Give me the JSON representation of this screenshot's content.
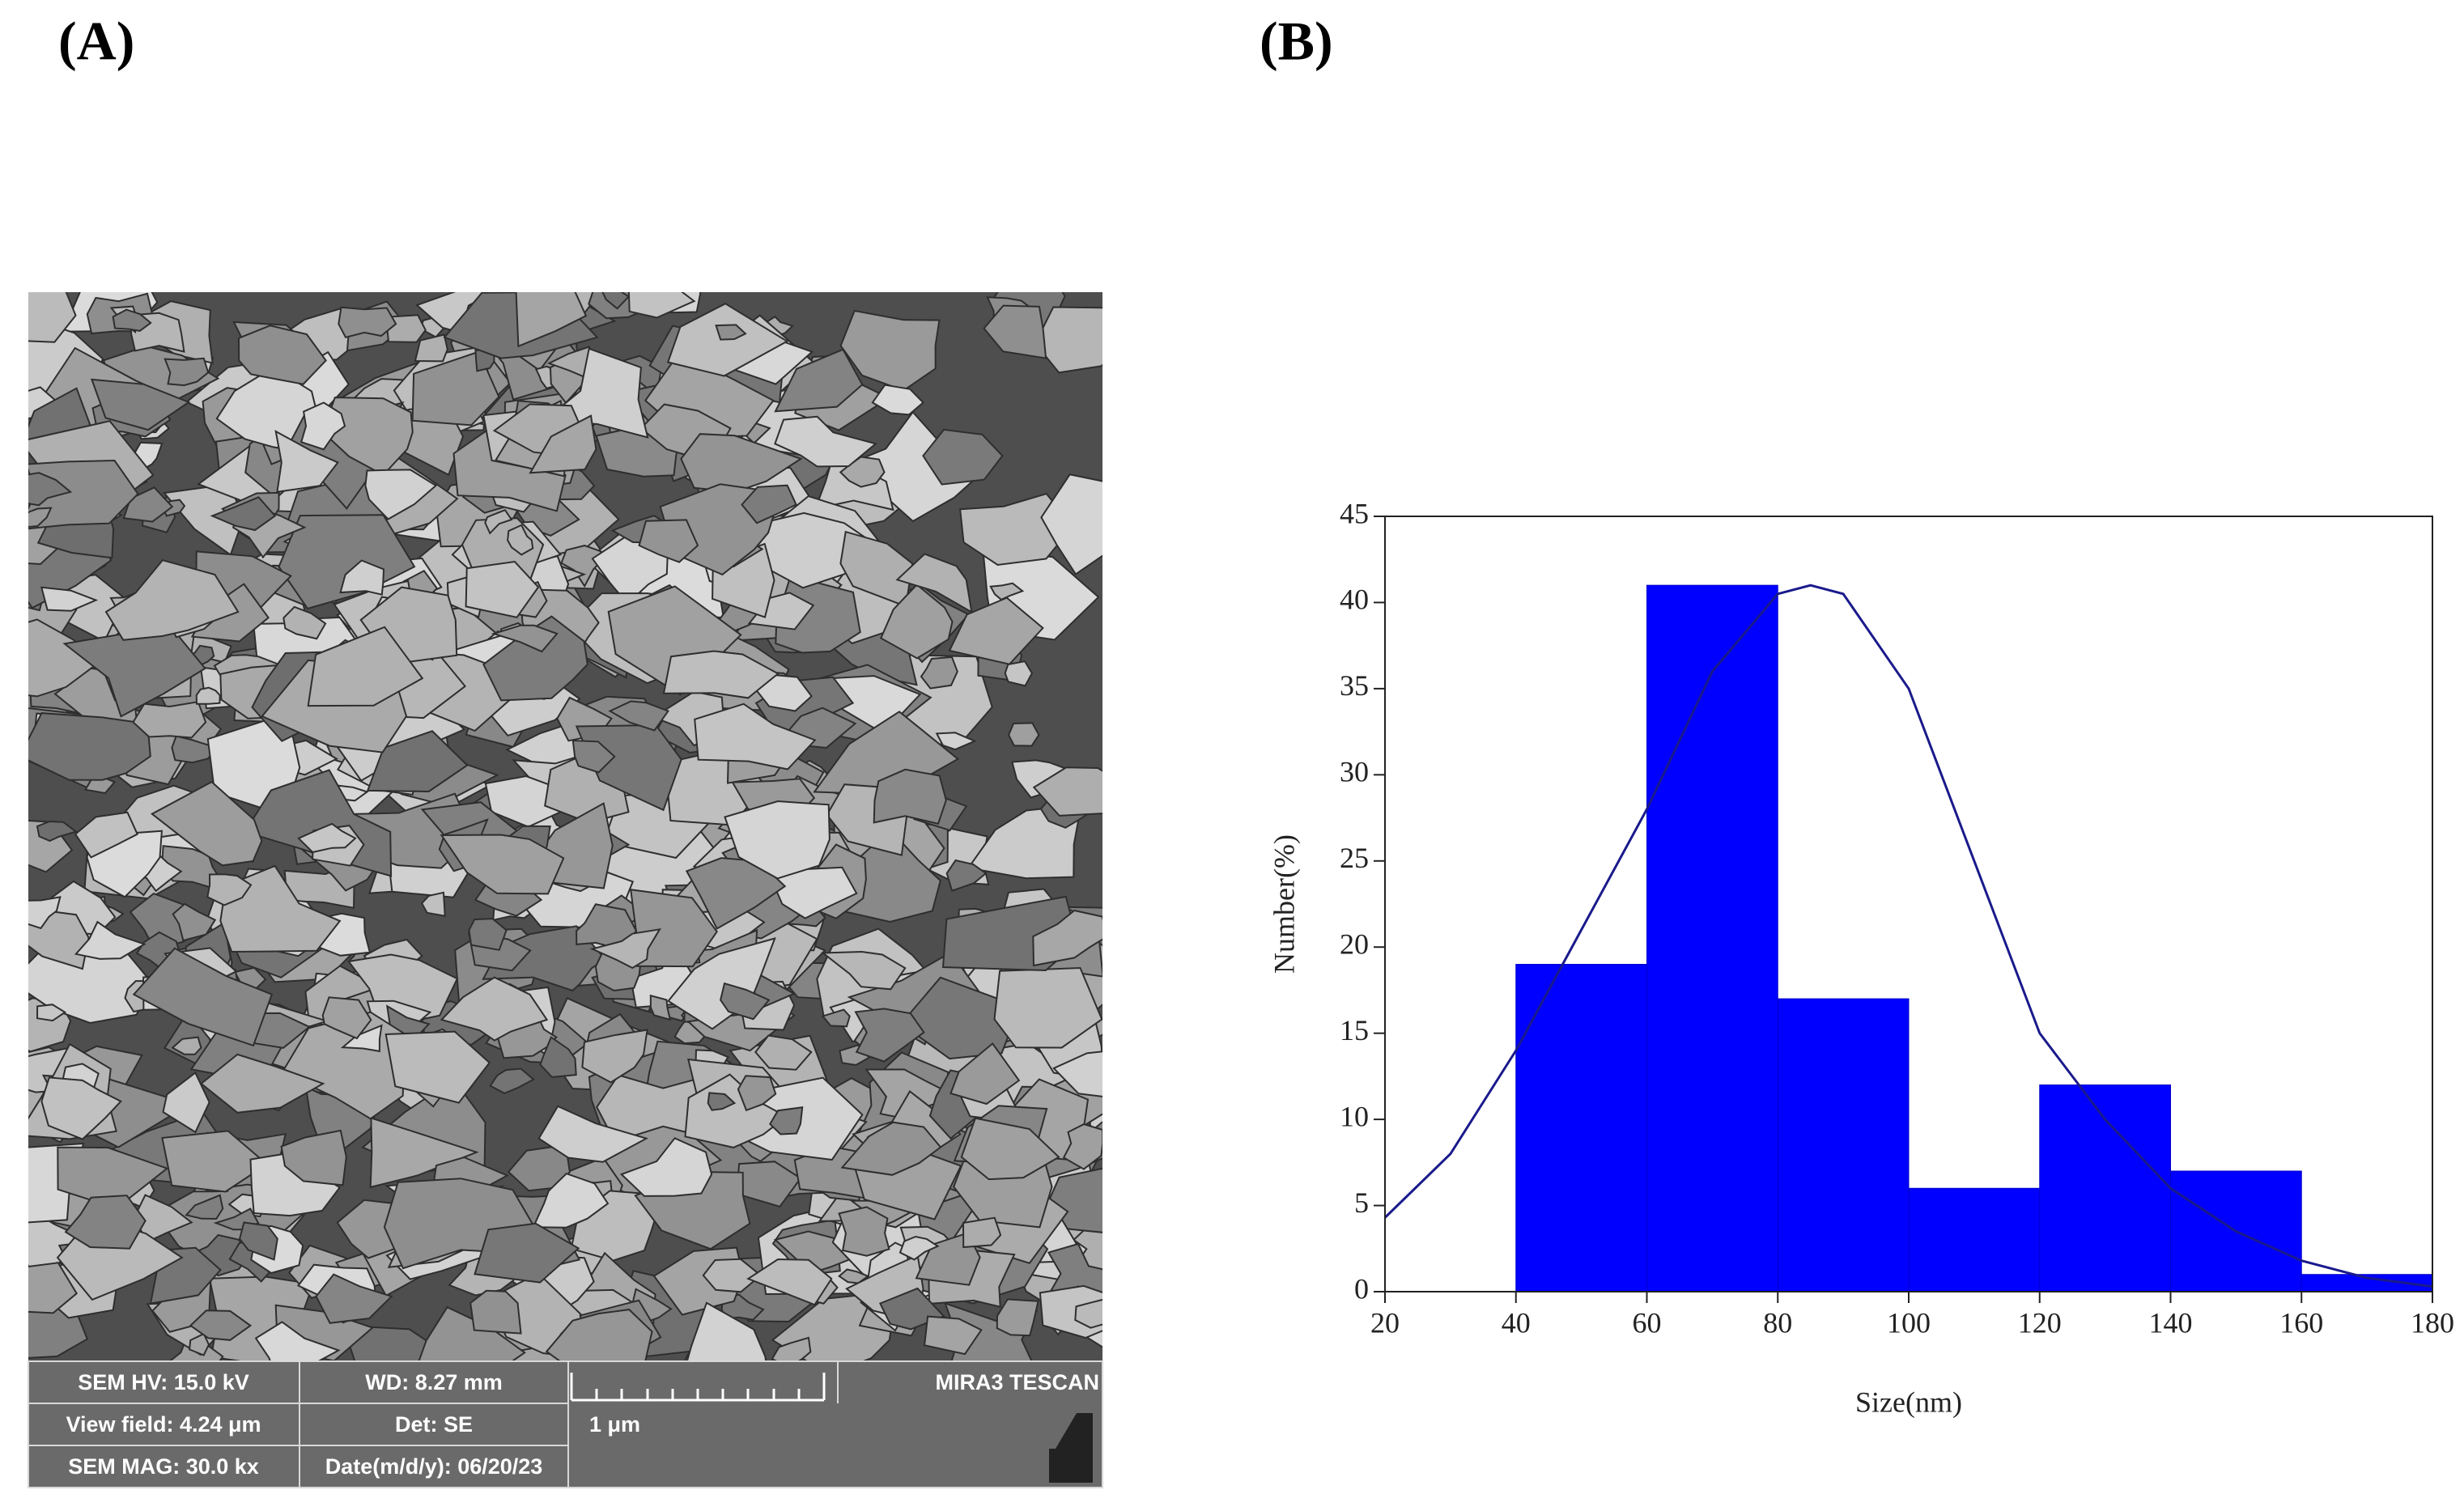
{
  "labels": {
    "a": "(A)",
    "b": "(B)"
  },
  "sem": {
    "hv": "SEM HV: 15.0 kV",
    "wd": "WD: 8.27 mm",
    "brand": "MIRA3 TESCAN",
    "view": "View field: 4.24 μm",
    "det": "Det: SE",
    "scale": "1 μm",
    "mag": "SEM MAG: 30.0 kx",
    "date": "Date(m/d/y): 06/20/23"
  },
  "chart_data": {
    "type": "histogram",
    "bins": [
      40,
      60,
      80,
      100,
      120,
      140,
      160,
      180
    ],
    "values": [
      19,
      41,
      17,
      6,
      12,
      7,
      1
    ],
    "color": "#0000ff",
    "curve": {
      "color": "#1a1a8c",
      "x": [
        20,
        30,
        40,
        50,
        60,
        70,
        80,
        85,
        90,
        100,
        110,
        120,
        130,
        140,
        150,
        160,
        170,
        180
      ],
      "y": [
        4.3,
        8,
        14,
        21,
        28,
        36,
        40.5,
        41,
        40.5,
        35,
        25,
        15,
        10,
        6,
        3.5,
        1.8,
        0.8,
        0.3
      ]
    },
    "xlabel": "Size(nm)",
    "ylabel": "Number(%)",
    "xlim": [
      20,
      180
    ],
    "xticks": [
      20,
      40,
      60,
      80,
      100,
      120,
      140,
      160,
      180
    ],
    "ylim": [
      0,
      45
    ],
    "yticks": [
      0,
      5,
      10,
      15,
      20,
      25,
      30,
      35,
      40,
      45
    ]
  }
}
